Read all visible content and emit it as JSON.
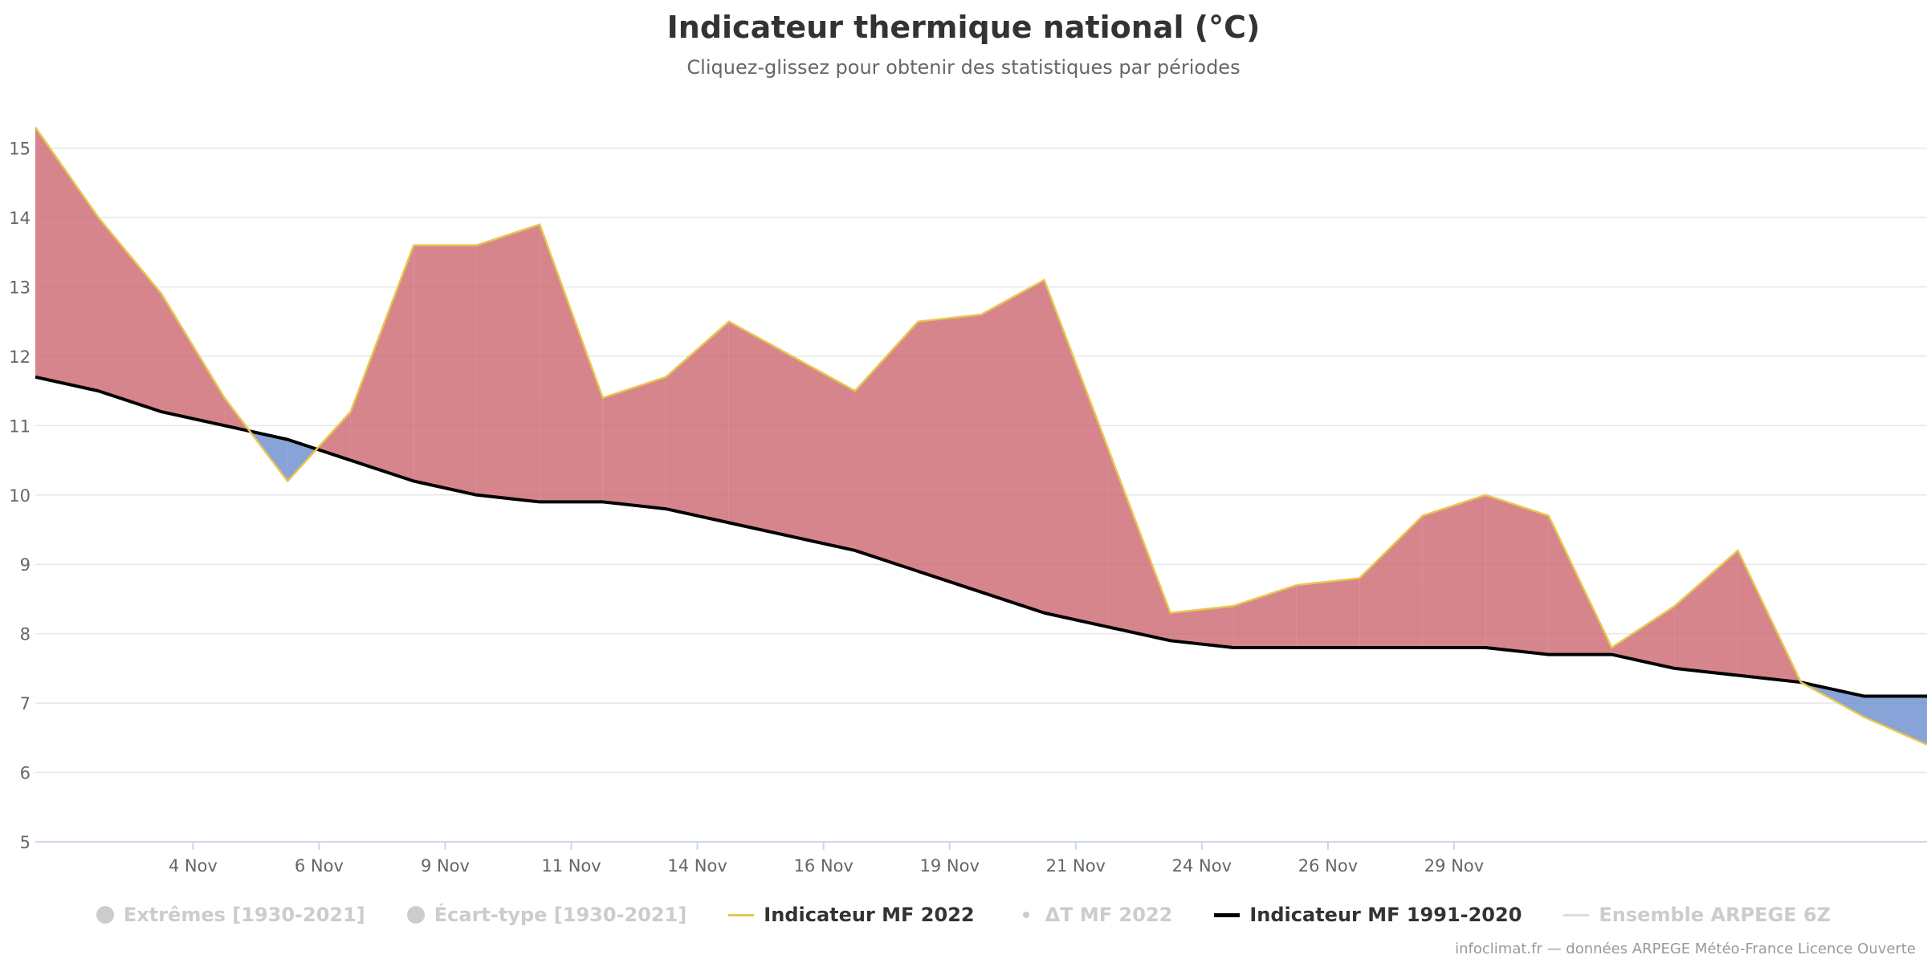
{
  "chart_data": {
    "type": "area",
    "title": "Indicateur thermique national (°C)",
    "subtitle": "Cliquez-glissez pour obtenir des statistiques par périodes",
    "xlabel": "",
    "ylabel": "",
    "ylim": [
      5,
      15.4
    ],
    "y_ticks": [
      "5",
      "6",
      "7",
      "8",
      "9",
      "10",
      "11",
      "12",
      "13",
      "14",
      "15"
    ],
    "x_ticks": [
      "4 Nov",
      "6 Nov",
      "9 Nov",
      "11 Nov",
      "14 Nov",
      "16 Nov",
      "19 Nov",
      "21 Nov",
      "24 Nov",
      "26 Nov",
      "29 Nov"
    ],
    "grid": true,
    "series": [
      {
        "name": "Indicateur MF 2022",
        "values": [
          15.3,
          14.0,
          12.9,
          11.4,
          10.2,
          11.2,
          13.6,
          13.6,
          13.9,
          11.4,
          11.7,
          12.5,
          12.0,
          11.5,
          12.5,
          12.6,
          13.1,
          10.7,
          8.3,
          8.4,
          8.7,
          8.8,
          9.7,
          10.0,
          9.7,
          7.8,
          8.4,
          9.2,
          7.3,
          6.8,
          6.4
        ]
      },
      {
        "name": "Indicateur MF 1991–2020",
        "values": [
          11.7,
          11.5,
          11.2,
          11.0,
          10.8,
          10.5,
          10.2,
          10.0,
          9.9,
          9.9,
          9.8,
          9.6,
          9.4,
          9.2,
          8.9,
          8.6,
          8.3,
          8.1,
          7.9,
          7.8,
          7.8,
          7.8,
          7.8,
          7.8,
          7.7,
          7.7,
          7.5,
          7.4,
          7.3,
          7.1,
          7.1
        ]
      }
    ],
    "anomaly_fill": {
      "above": "#cc6670",
      "below": "#6a8ccd"
    },
    "colors": {
      "indicator_2022": "#e7c64d",
      "normal_1991_2020": "#000000",
      "grid": "#e6e6e6",
      "axis": "#ccd6eb",
      "label": "#666666"
    }
  },
  "legend": [
    {
      "label": "Extrêmes [1930-2021]",
      "symbol": "dot",
      "active": false
    },
    {
      "label": "Écart-type [1930-2021]",
      "symbol": "dot",
      "active": false
    },
    {
      "label": "Indicateur MF 2022",
      "symbol": "line-yellow",
      "active": true
    },
    {
      "label": "ΔT MF 2022",
      "symbol": "smalldot",
      "active": false
    },
    {
      "label": "Indicateur MF 1991-2020",
      "symbol": "line-black",
      "active": true
    },
    {
      "label": "Ensemble ARPEGE 6Z",
      "symbol": "line-grey",
      "active": false
    }
  ],
  "credits": "infoclimat.fr — données ARPEGE Météo-France Licence Ouverte"
}
